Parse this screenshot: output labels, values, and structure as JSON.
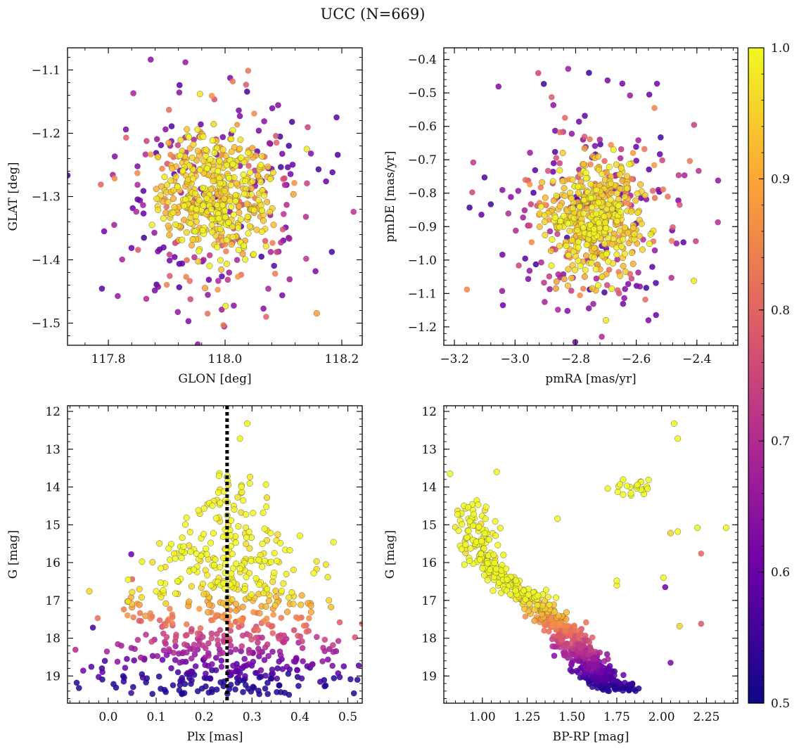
{
  "title": "UCC (N=669)",
  "colorbar": {
    "min": 0.5,
    "max": 1.0,
    "ticks": [
      0.5,
      0.6,
      0.7,
      0.8,
      0.9,
      1.0
    ],
    "tick_labels": [
      "0.5",
      "0.6",
      "0.7",
      "0.8",
      "0.9",
      "1.0"
    ],
    "colormap": "plasma",
    "colors": [
      "#0d0887",
      "#6a00a8",
      "#b12a90",
      "#e16462",
      "#fca636",
      "#f0f921"
    ]
  },
  "chart_data": [
    {
      "id": "glon-glat",
      "type": "scatter",
      "xlabel": "GLON [deg]",
      "ylabel": "GLAT [deg]",
      "xlim": [
        117.73,
        118.235
      ],
      "ylim": [
        -1.535,
        -1.065
      ],
      "xticks": [
        117.8,
        118.0,
        118.2
      ],
      "xtick_labels": [
        "117.8",
        "118.0",
        "118.2"
      ],
      "yticks": [
        -1.1,
        -1.2,
        -1.3,
        -1.4,
        -1.5
      ],
      "ytick_labels": [
        "−1.1",
        "−1.2",
        "−1.3",
        "−1.4",
        "−1.5"
      ],
      "invert_y": false,
      "n_points": 669,
      "cloud": {
        "center": [
          117.985,
          -1.3
        ],
        "spread": [
          0.05,
          0.055
        ],
        "tail_spread": [
          0.085,
          0.085
        ]
      },
      "notable_points": [
        {
          "x": 118.013,
          "y": -1.118,
          "p": 0.82
        },
        {
          "x": 117.957,
          "y": -1.138,
          "p": 0.98
        },
        {
          "x": 118.155,
          "y": -1.418,
          "p": 0.62
        },
        {
          "x": 118.173,
          "y": -1.276,
          "p": 0.6
        },
        {
          "x": 117.787,
          "y": -1.281,
          "p": 0.8
        },
        {
          "x": 117.97,
          "y": -1.485,
          "p": 0.82
        },
        {
          "x": 118.098,
          "y": -1.456,
          "p": 0.62
        },
        {
          "x": 118.14,
          "y": -1.225,
          "p": 0.98
        },
        {
          "x": 117.83,
          "y": -1.194,
          "p": 0.62
        },
        {
          "x": 118.001,
          "y": -1.473,
          "p": 0.98
        }
      ]
    },
    {
      "id": "pmra-pmde",
      "type": "scatter",
      "xlabel": "pmRA [mas/yr]",
      "ylabel": "pmDE [mas/yr]",
      "xlim": [
        -3.235,
        -2.265
      ],
      "ylim": [
        -1.255,
        -0.365
      ],
      "xticks": [
        -3.2,
        -3.0,
        -2.8,
        -2.6,
        -2.4
      ],
      "xtick_labels": [
        "−3.2",
        "−3.0",
        "−2.8",
        "−2.6",
        "−2.4"
      ],
      "yticks": [
        -0.4,
        -0.5,
        -0.6,
        -0.7,
        -0.8,
        -0.9,
        -1.0,
        -1.1,
        -1.2
      ],
      "ytick_labels": [
        "−0.4",
        "−0.5",
        "−0.6",
        "−0.7",
        "−0.8",
        "−0.9",
        "−1.0",
        "−1.1",
        "−1.2"
      ],
      "invert_y": false,
      "n_points": 669,
      "cloud": {
        "center": [
          -2.74,
          -0.875
        ],
        "spread": [
          0.075,
          0.09
        ],
        "tail_spread": [
          0.15,
          0.16
        ]
      },
      "notable_points": [
        {
          "x": -2.756,
          "y": -0.44,
          "p": 0.55
        },
        {
          "x": -2.905,
          "y": -0.473,
          "p": 0.55
        },
        {
          "x": -3.15,
          "y": -0.843,
          "p": 0.55
        },
        {
          "x": -2.33,
          "y": -0.762,
          "p": 0.65
        },
        {
          "x": -2.41,
          "y": -1.062,
          "p": 0.98
        },
        {
          "x": -2.56,
          "y": -1.18,
          "p": 0.62
        },
        {
          "x": -2.7,
          "y": -1.18,
          "p": 0.98
        },
        {
          "x": -3.04,
          "y": -1.135,
          "p": 0.6
        },
        {
          "x": -3.08,
          "y": -0.833,
          "p": 0.55
        },
        {
          "x": -2.557,
          "y": -0.505,
          "p": 0.6
        },
        {
          "x": -2.54,
          "y": -0.545,
          "p": 0.85
        }
      ]
    },
    {
      "id": "plx-g",
      "type": "scatter",
      "xlabel": "Plx [mas]",
      "ylabel": "G [mag]",
      "xlim": [
        -0.085,
        0.53
      ],
      "ylim": [
        11.85,
        19.72
      ],
      "xticks": [
        0.0,
        0.1,
        0.2,
        0.3,
        0.4,
        0.5
      ],
      "xtick_labels": [
        "0.0",
        "0.1",
        "0.2",
        "0.3",
        "0.4",
        "0.5"
      ],
      "yticks": [
        12,
        13,
        14,
        15,
        16,
        17,
        18,
        19
      ],
      "ytick_labels": [
        "12",
        "13",
        "14",
        "15",
        "16",
        "17",
        "18",
        "19"
      ],
      "invert_y": true,
      "n_points": 669,
      "vline": {
        "x": 0.248,
        "style": "dotted"
      },
      "notable_points": [
        {
          "x": 0.29,
          "y": 12.32,
          "p": 1.0
        },
        {
          "x": 0.275,
          "y": 12.72,
          "p": 1.0
        },
        {
          "x": 0.483,
          "y": 19.03,
          "p": 0.55
        },
        {
          "x": -0.032,
          "y": 17.72,
          "p": 0.55
        },
        {
          "x": 0.048,
          "y": 19.45,
          "p": 0.55
        },
        {
          "x": 0.048,
          "y": 15.78,
          "p": 0.6
        },
        {
          "x": 0.05,
          "y": 16.44,
          "p": 0.8
        },
        {
          "x": -0.007,
          "y": 18.6,
          "p": 0.55
        }
      ]
    },
    {
      "id": "bprp-g",
      "type": "scatter",
      "xlabel": "BP-RP [mag]",
      "ylabel": "G [mag]",
      "xlim": [
        0.785,
        2.425
      ],
      "ylim": [
        11.85,
        19.72
      ],
      "xticks": [
        1.0,
        1.25,
        1.5,
        1.75,
        2.0,
        2.25
      ],
      "xtick_labels": [
        "1.00",
        "1.25",
        "1.50",
        "1.75",
        "2.00",
        "2.25"
      ],
      "yticks": [
        12,
        13,
        14,
        15,
        16,
        17,
        18,
        19
      ],
      "ytick_labels": [
        "12",
        "13",
        "14",
        "15",
        "16",
        "17",
        "18",
        "19"
      ],
      "invert_y": true,
      "n_points": 669,
      "sequence": [
        {
          "x": 0.93,
          "y": 14.7
        },
        {
          "x": 1.0,
          "y": 15.9
        },
        {
          "x": 1.15,
          "y": 16.5
        },
        {
          "x": 1.3,
          "y": 17.1
        },
        {
          "x": 1.45,
          "y": 17.8
        },
        {
          "x": 1.55,
          "y": 18.4
        },
        {
          "x": 1.65,
          "y": 19.0
        },
        {
          "x": 1.75,
          "y": 19.35
        }
      ],
      "red_clump": {
        "center": [
          1.85,
          14.0
        ],
        "spread": [
          0.06,
          0.15
        ],
        "p": 1.0
      },
      "notable_points": [
        {
          "x": 2.07,
          "y": 12.32,
          "p": 1.0
        },
        {
          "x": 2.09,
          "y": 12.72,
          "p": 1.0
        },
        {
          "x": 2.36,
          "y": 15.08,
          "p": 1.0
        },
        {
          "x": 2.2,
          "y": 15.08,
          "p": 1.0
        },
        {
          "x": 2.22,
          "y": 15.76,
          "p": 0.8
        },
        {
          "x": 2.22,
          "y": 17.62,
          "p": 0.78
        },
        {
          "x": 2.05,
          "y": 18.65,
          "p": 0.62
        },
        {
          "x": 2.1,
          "y": 17.68,
          "p": 0.95
        },
        {
          "x": 2.01,
          "y": 16.4,
          "p": 1.0
        },
        {
          "x": 2.02,
          "y": 16.65,
          "p": 0.6
        },
        {
          "x": 1.75,
          "y": 16.6,
          "p": 1.0
        },
        {
          "x": 1.75,
          "y": 16.48,
          "p": 1.0
        },
        {
          "x": 1.42,
          "y": 14.84,
          "p": 1.0
        },
        {
          "x": 2.05,
          "y": 15.22,
          "p": 0.95
        },
        {
          "x": 2.09,
          "y": 15.18,
          "p": 1.0
        },
        {
          "x": 0.82,
          "y": 13.65,
          "p": 1.0
        },
        {
          "x": 1.08,
          "y": 13.6,
          "p": 1.0
        }
      ]
    }
  ]
}
